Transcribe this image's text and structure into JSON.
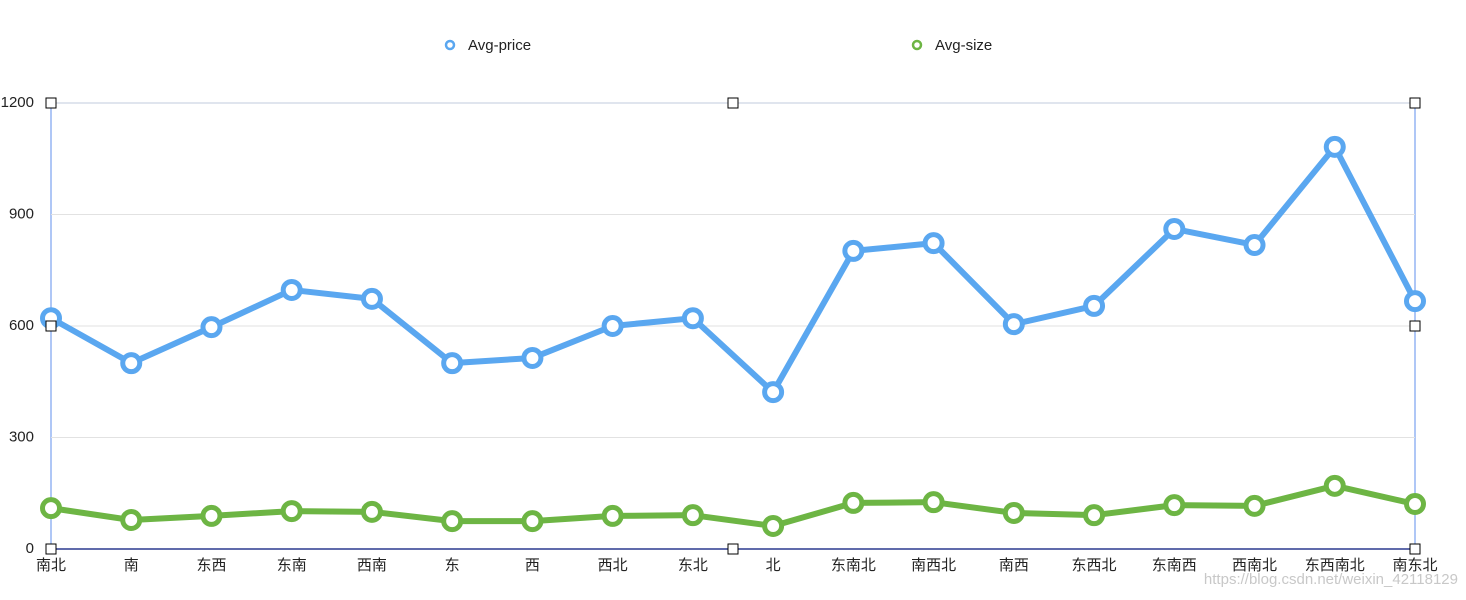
{
  "chart_data": {
    "type": "line",
    "categories": [
      "南北",
      "南",
      "东西",
      "东南",
      "西南",
      "东",
      "西",
      "西北",
      "东北",
      "北",
      "东南北",
      "南西北",
      "南西",
      "东西北",
      "东南西",
      "西南北",
      "东西南北",
      "南东北"
    ],
    "series": [
      {
        "name": "Avg-price",
        "color": "#5aa7f0",
        "values": [
          621,
          500,
          597,
          697,
          673,
          500,
          514,
          600,
          621,
          422,
          802,
          823,
          605,
          654,
          861,
          818,
          1082,
          667
        ]
      },
      {
        "name": "Avg-size",
        "color": "#6db544",
        "values": [
          110,
          78,
          89,
          102,
          100,
          75,
          75,
          89,
          91,
          62,
          124,
          126,
          97,
          91,
          118,
          116,
          170,
          121
        ]
      }
    ],
    "ylim": [
      0,
      1200
    ],
    "yticks": [
      0,
      300,
      600,
      900,
      1200
    ],
    "grid": true,
    "watermark": "https://blog.csdn.net/weixin_42118129"
  }
}
